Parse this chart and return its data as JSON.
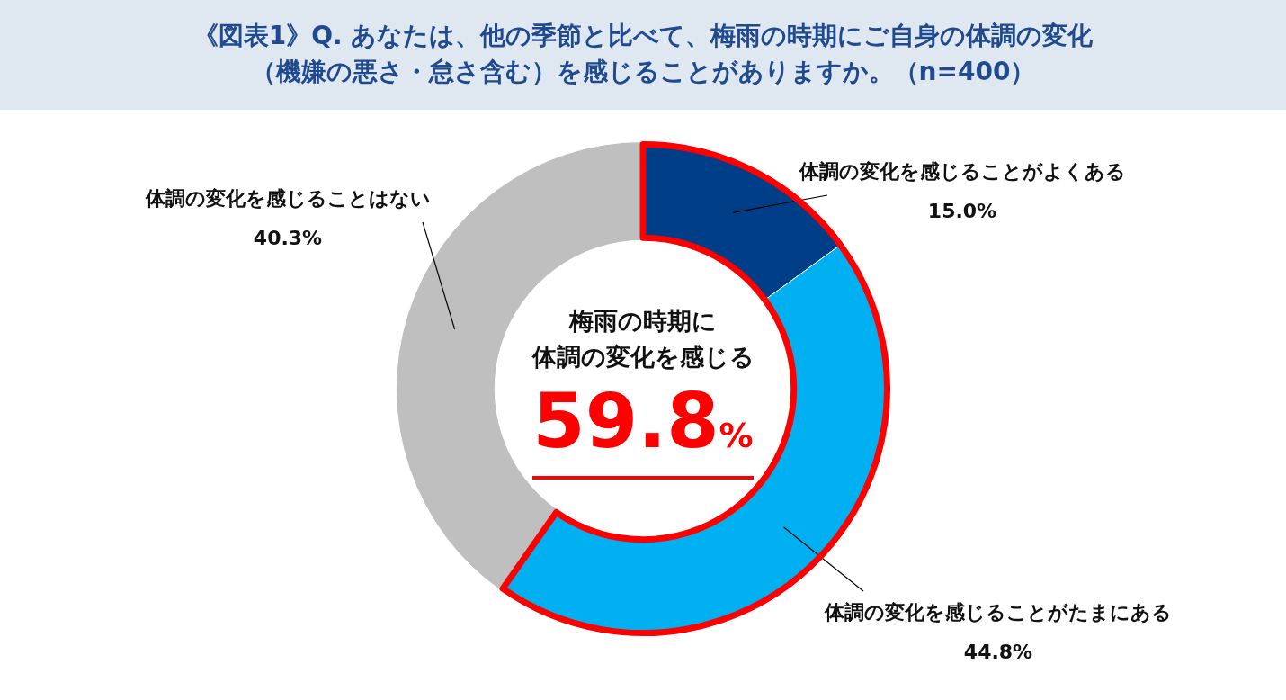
{
  "chart_data": {
    "type": "donut",
    "title": "《図表1》Q. あなたは、他の季節と比べて、梅雨の時期にご自身の体調の変化（機嫌の悪さ・怠さ含む）を感じることがありますか。（n=400）",
    "categories": [
      "体調の変化を感じることがよくある",
      "体調の変化を感じることがたまにある",
      "体調の変化を感じることはない"
    ],
    "values": [
      15.0,
      44.8,
      40.3
    ],
    "colors": [
      "#003f87",
      "#00b0f0",
      "#bfbfbf"
    ],
    "value_labels": [
      "15.0%",
      "44.8%",
      "40.3%"
    ],
    "legend": false,
    "annotations": [
      "梅雨の時期に",
      "体調の変化を感じる",
      "59.8%"
    ]
  }
}
